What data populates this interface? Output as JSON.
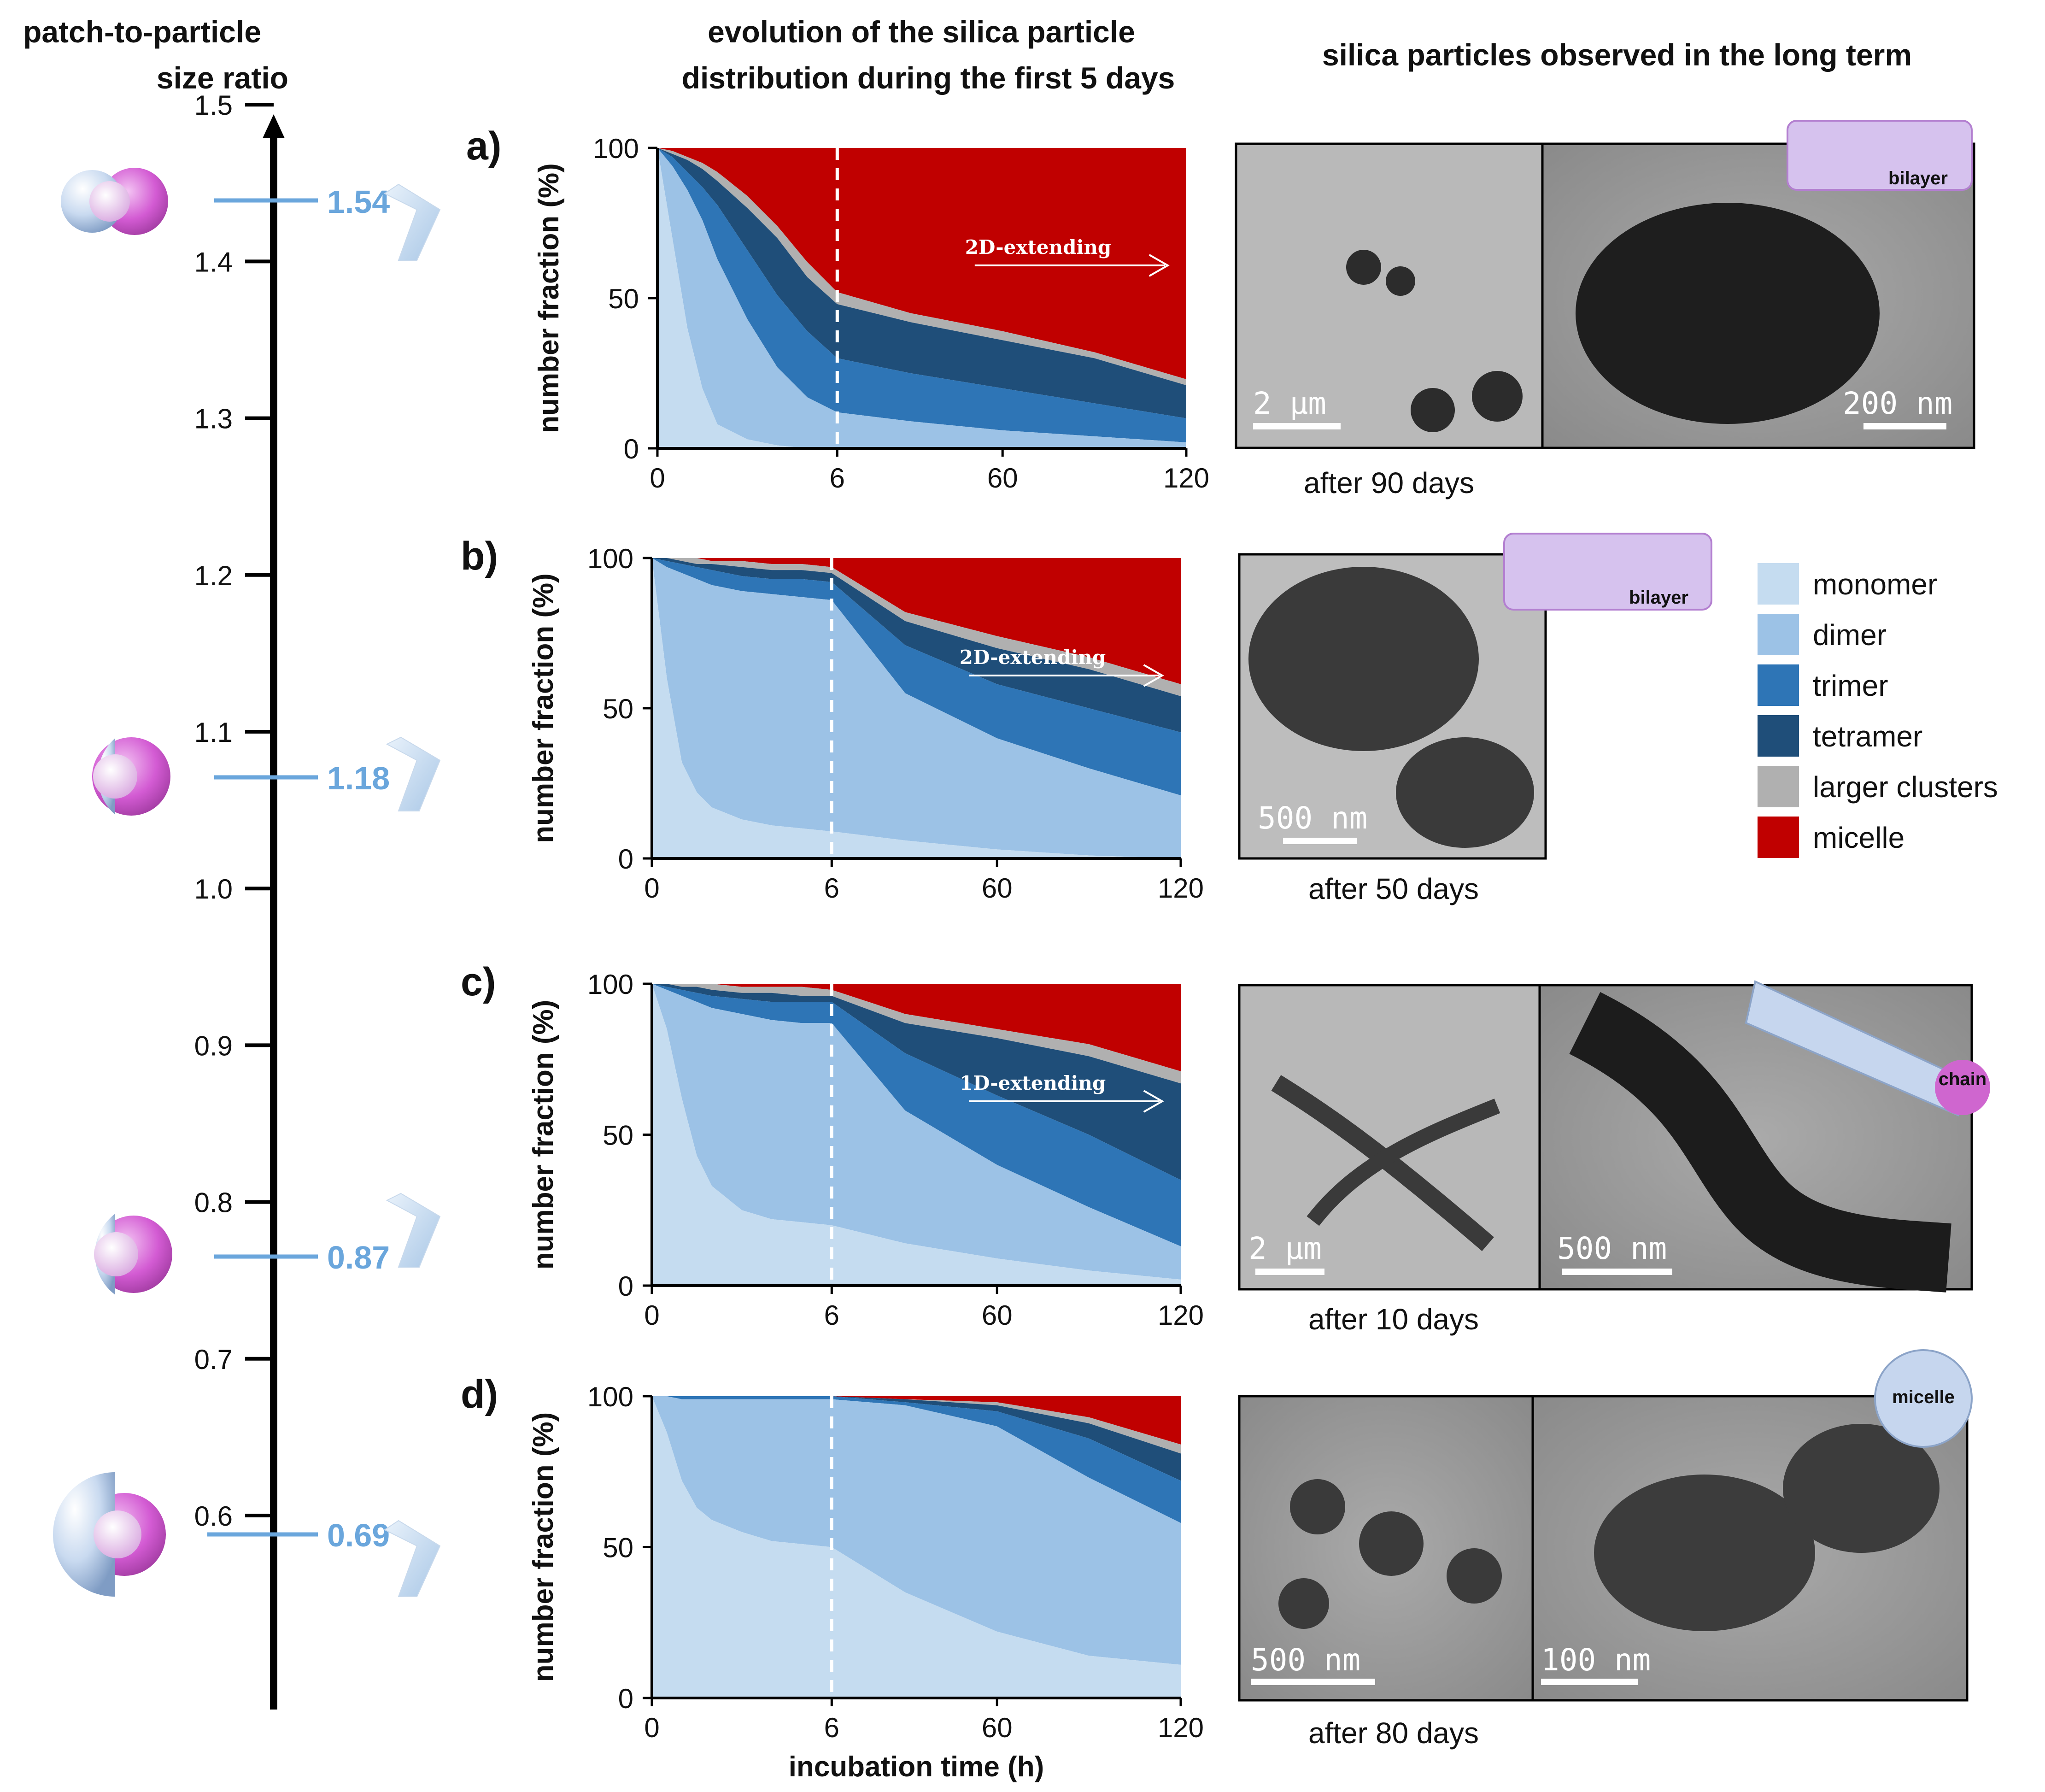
{
  "titles": {
    "left": [
      "patch-to-particle",
      "size ratio"
    ],
    "middle": [
      "evolution of the silica particle",
      "distribution during the first 5 days"
    ],
    "right": "silica particles observed in the long term"
  },
  "ratio_axis": {
    "ticks": [
      "1.5",
      "1.4",
      "1.3",
      "1.2",
      "1.1",
      "1.0",
      "0.9",
      "0.8",
      "0.7",
      "0.6"
    ],
    "markers": [
      "1.54",
      "1.18",
      "0.87",
      "0.69"
    ]
  },
  "legend": [
    {
      "label": "monomer",
      "color": "#c5dcf0"
    },
    {
      "label": "dimer",
      "color": "#9cc2e6"
    },
    {
      "label": "trimer",
      "color": "#2e75b6"
    },
    {
      "label": "tetramer",
      "color": "#1f4e79"
    },
    {
      "label": "larger clusters",
      "color": "#b0b0b0"
    },
    {
      "label": "micelle",
      "color": "#c00000"
    }
  ],
  "colors": [
    "#c5dcf0",
    "#9cc2e6",
    "#2e75b6",
    "#1f4e79",
    "#b0b0b0",
    "#c00000"
  ],
  "chart_data": [
    {
      "type": "area",
      "label": "a)",
      "ylabel": "number fraction (%)",
      "xlabel": "",
      "x_ticks": [
        "0",
        "6",
        "60",
        "120"
      ],
      "y_ticks": [
        "0",
        "50",
        "100"
      ],
      "ylim": [
        0,
        100
      ],
      "annotation": "2D-extending",
      "x": [
        0,
        0.5,
        1,
        1.5,
        2,
        3,
        4,
        5,
        6,
        30,
        60,
        90,
        120
      ],
      "cumulative": [
        [
          100,
          70,
          40,
          20,
          8,
          3,
          1,
          0,
          0,
          0,
          0,
          0,
          0
        ],
        [
          100,
          94,
          86,
          76,
          63,
          43,
          27,
          17,
          12,
          9,
          6,
          4,
          2
        ],
        [
          100,
          97,
          92,
          87,
          81,
          66,
          51,
          39,
          30,
          25,
          20,
          15,
          10
        ],
        [
          100,
          98,
          96,
          93,
          89,
          80,
          70,
          57,
          48,
          42,
          36,
          30,
          21
        ],
        [
          100,
          99,
          97,
          95,
          92,
          84,
          74,
          62,
          52,
          45,
          39,
          32,
          23
        ],
        [
          100,
          100,
          100,
          100,
          100,
          100,
          100,
          100,
          100,
          100,
          100,
          100,
          100
        ]
      ],
      "caption": "after 90 days",
      "scale_bars": [
        "2 µm",
        "200 nm"
      ],
      "tag": "bilayer"
    },
    {
      "type": "area",
      "label": "b)",
      "ylabel": "number fraction (%)",
      "xlabel": "",
      "x_ticks": [
        "0",
        "6",
        "60",
        "120"
      ],
      "y_ticks": [
        "0",
        "50",
        "100"
      ],
      "ylim": [
        0,
        100
      ],
      "annotation": "2D-extending",
      "x": [
        0,
        0.5,
        1,
        1.5,
        2,
        3,
        4,
        5,
        6,
        30,
        60,
        90,
        120
      ],
      "cumulative": [
        [
          100,
          60,
          32,
          22,
          17,
          13,
          11,
          10,
          9,
          6,
          3,
          1,
          0
        ],
        [
          100,
          97,
          95,
          93,
          91,
          89,
          88,
          87,
          86,
          55,
          40,
          30,
          21
        ],
        [
          100,
          99,
          98,
          97,
          96,
          94,
          93,
          93,
          92,
          71,
          58,
          50,
          42
        ],
        [
          100,
          100,
          99,
          98,
          98,
          97,
          96,
          96,
          95,
          79,
          70,
          63,
          54
        ],
        [
          100,
          100,
          100,
          100,
          99,
          99,
          98,
          98,
          97,
          82,
          74,
          67,
          58
        ],
        [
          100,
          100,
          100,
          100,
          100,
          100,
          100,
          100,
          100,
          100,
          100,
          100,
          100
        ]
      ],
      "caption": "after 50 days",
      "scale_bars": [
        "500 nm"
      ],
      "tag": "bilayer"
    },
    {
      "type": "area",
      "label": "c)",
      "ylabel": "number fraction (%)",
      "xlabel": "",
      "x_ticks": [
        "0",
        "6",
        "60",
        "120"
      ],
      "y_ticks": [
        "0",
        "50",
        "100"
      ],
      "ylim": [
        0,
        100
      ],
      "annotation": "1D-extending",
      "x": [
        0,
        0.5,
        1,
        1.5,
        2,
        3,
        4,
        5,
        6,
        30,
        60,
        90,
        120
      ],
      "cumulative": [
        [
          100,
          85,
          62,
          43,
          33,
          25,
          22,
          21,
          20,
          14,
          9,
          5,
          2
        ],
        [
          100,
          98,
          96,
          94,
          92,
          90,
          88,
          87,
          87,
          58,
          40,
          26,
          13
        ],
        [
          100,
          99,
          98,
          97,
          96,
          95,
          94,
          94,
          94,
          77,
          63,
          50,
          35
        ],
        [
          100,
          100,
          99,
          99,
          98,
          97,
          97,
          96,
          96,
          87,
          82,
          76,
          67
        ],
        [
          100,
          100,
          100,
          100,
          100,
          99,
          99,
          99,
          98,
          90,
          85,
          80,
          71
        ],
        [
          100,
          100,
          100,
          100,
          100,
          100,
          100,
          100,
          100,
          100,
          100,
          100,
          100
        ]
      ],
      "caption": "after 10 days",
      "scale_bars": [
        "2 µm",
        "500 nm"
      ],
      "tag": "chain"
    },
    {
      "type": "area",
      "label": "d)",
      "ylabel": "number fraction (%)",
      "xlabel": "incubation time (h)",
      "x_ticks": [
        "0",
        "6",
        "60",
        "120"
      ],
      "y_ticks": [
        "0",
        "50",
        "100"
      ],
      "ylim": [
        0,
        100
      ],
      "annotation": "",
      "x": [
        0,
        0.5,
        1,
        1.5,
        2,
        3,
        4,
        5,
        6,
        30,
        60,
        90,
        120
      ],
      "cumulative": [
        [
          100,
          88,
          72,
          63,
          59,
          55,
          52,
          51,
          50,
          35,
          22,
          14,
          11
        ],
        [
          100,
          100,
          99,
          99,
          99,
          99,
          99,
          99,
          99,
          97,
          90,
          73,
          58
        ],
        [
          100,
          100,
          100,
          100,
          100,
          100,
          100,
          100,
          100,
          98,
          95,
          86,
          72
        ],
        [
          100,
          100,
          100,
          100,
          100,
          100,
          100,
          100,
          100,
          99,
          97,
          91,
          81
        ],
        [
          100,
          100,
          100,
          100,
          100,
          100,
          100,
          100,
          100,
          99,
          98,
          93,
          84
        ],
        [
          100,
          100,
          100,
          100,
          100,
          100,
          100,
          100,
          100,
          100,
          100,
          100,
          100
        ]
      ],
      "caption": "after 80 days",
      "scale_bars": [
        "500 nm",
        "100 nm"
      ],
      "tag": "micelle"
    }
  ]
}
